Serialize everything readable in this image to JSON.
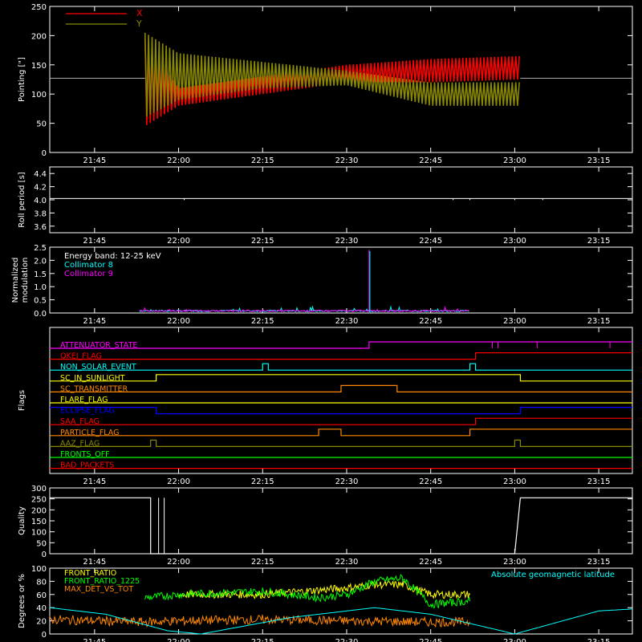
{
  "x_ticks": [
    "21:45",
    "22:00",
    "22:15",
    "22:30",
    "22:45",
    "23:00",
    "23:15"
  ],
  "colors": {
    "background": "#000000",
    "axis": "#ffffff",
    "red": "#ff0000",
    "olive": "#888800",
    "cyan": "#00ffff",
    "magenta": "#ff00ff",
    "green": "#00ff00",
    "orange": "#ff8800",
    "yellow": "#ffff00",
    "blue": "#0000ff",
    "white": "#ffffff"
  },
  "chart_data": [
    {
      "id": "pointing",
      "type": "area",
      "ylabel": "Pointing [\"]",
      "yticks": [
        "250",
        "200",
        "150",
        "100",
        "50",
        "0"
      ],
      "ylim": [
        0,
        250
      ],
      "xlim": [
        "21:37",
        "23:21"
      ],
      "legend": {
        "placement": "top-left",
        "entries": [
          {
            "name": "X",
            "color": "#ff0000"
          },
          {
            "name": "Y",
            "color": "#888800"
          }
        ]
      },
      "baseline": 127,
      "active_window": [
        "21:54",
        "23:01"
      ],
      "series": [
        {
          "name": "X",
          "color": "#ff0000",
          "x": [
            "21:54",
            "22:00",
            "22:15",
            "22:30",
            "22:45",
            "23:01"
          ],
          "upper": [
            195,
            110,
            130,
            150,
            160,
            165
          ],
          "lower": [
            45,
            80,
            100,
            120,
            120,
            125
          ]
        },
        {
          "name": "Y",
          "color": "#888800",
          "x": [
            "21:54",
            "22:00",
            "22:15",
            "22:30",
            "22:45",
            "23:01"
          ],
          "upper": [
            205,
            170,
            155,
            140,
            120,
            120
          ],
          "lower": [
            60,
            90,
            110,
            115,
            80,
            80
          ]
        }
      ]
    },
    {
      "id": "roll",
      "type": "line",
      "ylabel": "Roll period [s]",
      "yticks": [
        "4.4",
        "4.2",
        "4.0",
        "3.8",
        "3.6"
      ],
      "ylim": [
        3.5,
        4.5
      ],
      "series": [
        {
          "name": "",
          "value": 4.02
        }
      ]
    },
    {
      "id": "modulation",
      "type": "line",
      "ylabel_lines": [
        "Normalized",
        "modulation"
      ],
      "yticks": [
        "2.5",
        "2.0",
        "1.5",
        "1.0",
        "0.5",
        "0.0"
      ],
      "ylim": [
        0,
        2.5
      ],
      "legend": {
        "placement": "top-left",
        "entries": [
          {
            "name": "Energy band: 12-25 keV",
            "color": "#ffffff"
          },
          {
            "name": "Collimator 8",
            "color": "#00ffff"
          },
          {
            "name": "Collimator 9",
            "color": "#ff00ff"
          }
        ]
      },
      "active_window": [
        "21:53",
        "22:52"
      ],
      "typical_value": 0.05,
      "spike": {
        "x": "22:34",
        "y": 2.4
      }
    },
    {
      "id": "flags",
      "type": "table",
      "ylabel": "Flags",
      "rows": [
        {
          "label": "ATTENUATOR_STATE",
          "color": "#ff00ff",
          "transitions": [
            [
              "21:37",
              0
            ],
            [
              "22:34",
              1
            ]
          ]
        },
        {
          "label": "QKEJ_FLAG",
          "color": "#ff0000",
          "transitions": [
            [
              "21:37",
              0
            ],
            [
              "22:53",
              1
            ]
          ]
        },
        {
          "label": "NON_SOLAR_EVENT",
          "color": "#00ffff",
          "transitions": [
            [
              "21:37",
              0
            ],
            [
              "22:15",
              1
            ],
            [
              "22:16",
              0
            ],
            [
              "22:52",
              1
            ],
            [
              "22:53",
              0
            ]
          ]
        },
        {
          "label": "SC_IN_SUNLIGHT",
          "color": "#ffff00",
          "transitions": [
            [
              "21:37",
              0
            ],
            [
              "21:56",
              1
            ],
            [
              "23:01",
              0
            ]
          ]
        },
        {
          "label": "SC_TRANSMITTER",
          "color": "#ff8800",
          "transitions": [
            [
              "21:37",
              0
            ],
            [
              "22:29",
              1
            ],
            [
              "22:39",
              0
            ]
          ]
        },
        {
          "label": "FLARE_FLAG",
          "color": "#ffff00",
          "transitions": [
            [
              "21:37",
              0
            ]
          ]
        },
        {
          "label": "ECLIPSE_FLAG",
          "color": "#0000ff",
          "transitions": [
            [
              "21:37",
              1
            ],
            [
              "21:56",
              0
            ],
            [
              "23:01",
              1
            ]
          ]
        },
        {
          "label": "SAA_FLAG",
          "color": "#ff0000",
          "transitions": [
            [
              "21:37",
              0
            ],
            [
              "22:53",
              1
            ]
          ]
        },
        {
          "label": "PARTICLE_FLAG",
          "color": "#ff8800",
          "transitions": [
            [
              "21:37",
              0
            ],
            [
              "22:25",
              1
            ],
            [
              "22:29",
              0
            ],
            [
              "22:52",
              1
            ]
          ]
        },
        {
          "label": "AAZ_FLAG",
          "color": "#888800",
          "transitions": [
            [
              "21:37",
              0
            ],
            [
              "21:55",
              1
            ],
            [
              "21:56",
              0
            ],
            [
              "23:00",
              1
            ],
            [
              "23:01",
              0
            ]
          ]
        },
        {
          "label": "FRONTS_OFF",
          "color": "#00ff00",
          "transitions": [
            [
              "21:37",
              0
            ]
          ]
        },
        {
          "label": "BAD_PACKETS",
          "color": "#ff0000",
          "transitions": [
            [
              "21:37",
              0
            ]
          ]
        }
      ]
    },
    {
      "id": "quality",
      "type": "line",
      "ylabel": "Quality",
      "yticks": [
        "300",
        "250",
        "200",
        "150",
        "100",
        "50",
        "0"
      ],
      "ylim": [
        0,
        300
      ],
      "series": [
        {
          "name": "",
          "color": "#ffffff",
          "x": [
            "21:37",
            "21:55",
            "21:55",
            "21:56",
            "21:56",
            "23:00",
            "23:01",
            "23:21"
          ],
          "y": [
            255,
            255,
            0,
            0,
            0,
            0,
            255,
            255
          ]
        }
      ]
    },
    {
      "id": "ratios",
      "type": "line",
      "ylabel": "Degrees or %",
      "yticks": [
        "100",
        "80",
        "60",
        "40",
        "20",
        "0"
      ],
      "ylim": [
        0,
        100
      ],
      "legend": {
        "placement": "top-left",
        "entries": [
          {
            "name": "FRONT_RATIO",
            "color": "#ffff00"
          },
          {
            "name": "FRONT_RATIO_1225",
            "color": "#00ff00"
          },
          {
            "name": "MAX_DET_VS_TOT",
            "color": "#ff8800"
          }
        ]
      },
      "legend_right": {
        "name": "Absolute geomagnetic latitude",
        "color": "#00ffff"
      },
      "series": [
        {
          "name": "FRONT_RATIO",
          "color": "#ffff00",
          "x": [
            "22:00",
            "22:15",
            "22:30",
            "22:35",
            "22:40",
            "22:45",
            "22:52"
          ],
          "y": [
            60,
            60,
            70,
            75,
            75,
            60,
            60
          ]
        },
        {
          "name": "FRONT_RATIO_1225",
          "color": "#00ff00",
          "x": [
            "21:54",
            "22:00",
            "22:15",
            "22:25",
            "22:30",
            "22:35",
            "22:40",
            "22:45",
            "22:52"
          ],
          "y": [
            55,
            60,
            65,
            55,
            60,
            80,
            85,
            45,
            50
          ]
        },
        {
          "name": "MAX_DET_VS_TOT",
          "color": "#ff8800",
          "x": [
            "21:37",
            "21:54",
            "22:00",
            "22:15",
            "22:30",
            "22:45",
            "22:52"
          ],
          "y": [
            22,
            18,
            20,
            22,
            20,
            18,
            18
          ]
        },
        {
          "name": "Absolute geomagnetic latitude",
          "color": "#00ffff",
          "x": [
            "21:37",
            "21:47",
            "21:58",
            "22:04",
            "22:20",
            "22:35",
            "22:45",
            "23:00",
            "23:15",
            "23:21"
          ],
          "y": [
            40,
            30,
            5,
            0,
            25,
            40,
            30,
            0,
            35,
            38
          ]
        }
      ]
    }
  ]
}
